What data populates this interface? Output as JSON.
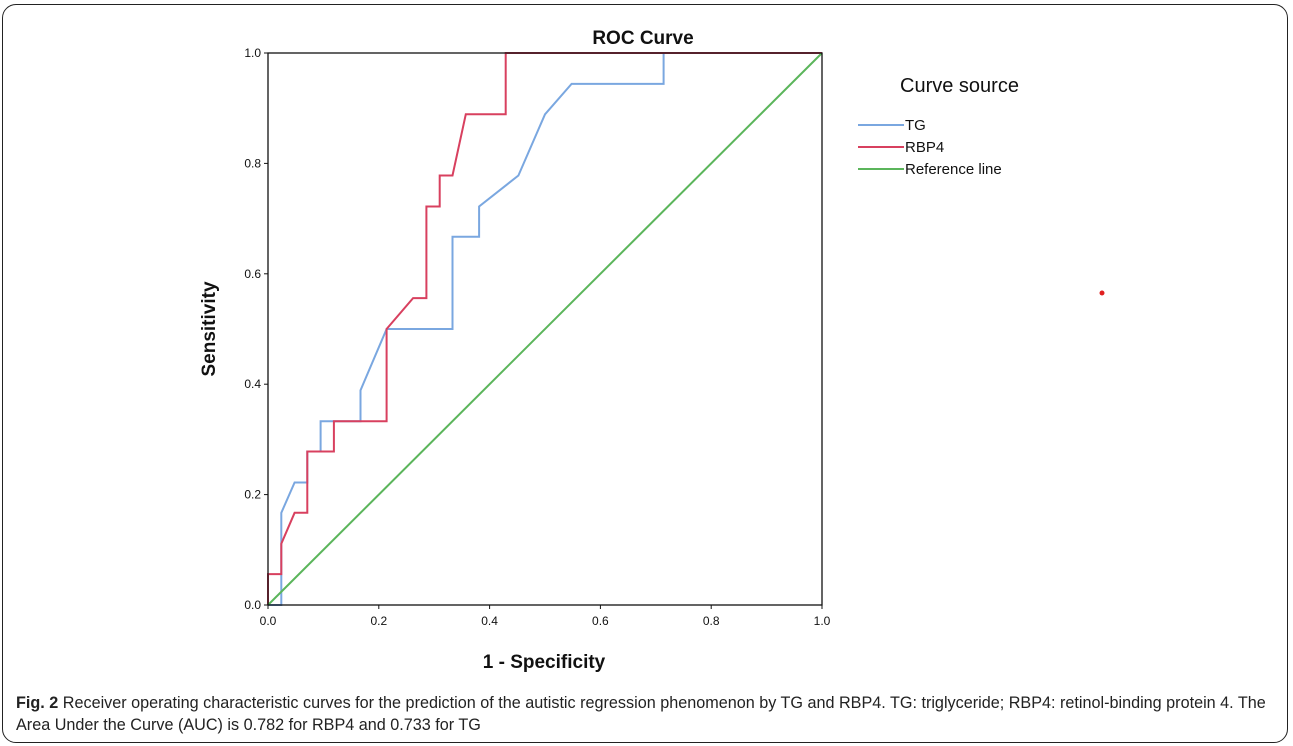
{
  "chart_data": {
    "type": "line",
    "title": "ROC Curve",
    "xlabel": "1 - Specificity",
    "ylabel": "Sensitivity",
    "xlim": [
      0.0,
      1.0
    ],
    "ylim": [
      0.0,
      1.0
    ],
    "x_ticks": [
      "0.0",
      "0.2",
      "0.4",
      "0.6",
      "0.8",
      "1.0"
    ],
    "y_ticks": [
      "0.0",
      "0.2",
      "0.4",
      "0.6",
      "0.8",
      "1.0"
    ],
    "grid": false,
    "legend": {
      "title": "Curve source",
      "position": "right"
    },
    "series": [
      {
        "name": "TG",
        "color": "#7aa7e0",
        "x": [
          0.0,
          0.024,
          0.024,
          0.024,
          0.048,
          0.071,
          0.071,
          0.095,
          0.095,
          0.167,
          0.167,
          0.214,
          0.333,
          0.333,
          0.381,
          0.381,
          0.452,
          0.5,
          0.548,
          0.714,
          0.714,
          1.0
        ],
        "y": [
          0.0,
          0.0,
          0.111,
          0.167,
          0.222,
          0.222,
          0.278,
          0.278,
          0.333,
          0.333,
          0.389,
          0.5,
          0.5,
          0.667,
          0.667,
          0.722,
          0.778,
          0.889,
          0.944,
          0.944,
          1.0,
          1.0
        ]
      },
      {
        "name": "RBP4",
        "color": "#d8405f",
        "x": [
          0.0,
          0.0,
          0.024,
          0.024,
          0.048,
          0.071,
          0.071,
          0.095,
          0.119,
          0.119,
          0.214,
          0.214,
          0.262,
          0.286,
          0.286,
          0.31,
          0.31,
          0.333,
          0.357,
          0.429,
          0.429,
          1.0
        ],
        "y": [
          0.0,
          0.056,
          0.056,
          0.111,
          0.167,
          0.167,
          0.278,
          0.278,
          0.278,
          0.333,
          0.333,
          0.5,
          0.556,
          0.556,
          0.722,
          0.722,
          0.778,
          0.778,
          0.889,
          0.889,
          1.0,
          1.0
        ]
      },
      {
        "name": "Reference line",
        "color": "#5bb55b",
        "x": [
          0.0,
          1.0
        ],
        "y": [
          0.0,
          1.0
        ]
      }
    ]
  },
  "caption": {
    "label": "Fig. 2",
    "text": " Receiver operating characteristic curves for the prediction of the autistic regression phenomenon by TG and RBP4. TG: triglyceride; RBP4: retinol-binding protein 4. The Area Under the Curve (AUC) is 0.782 for RBP4 and 0.733 for TG"
  },
  "colors": {
    "stray_dot": "#e02020",
    "axis": "#111111"
  }
}
